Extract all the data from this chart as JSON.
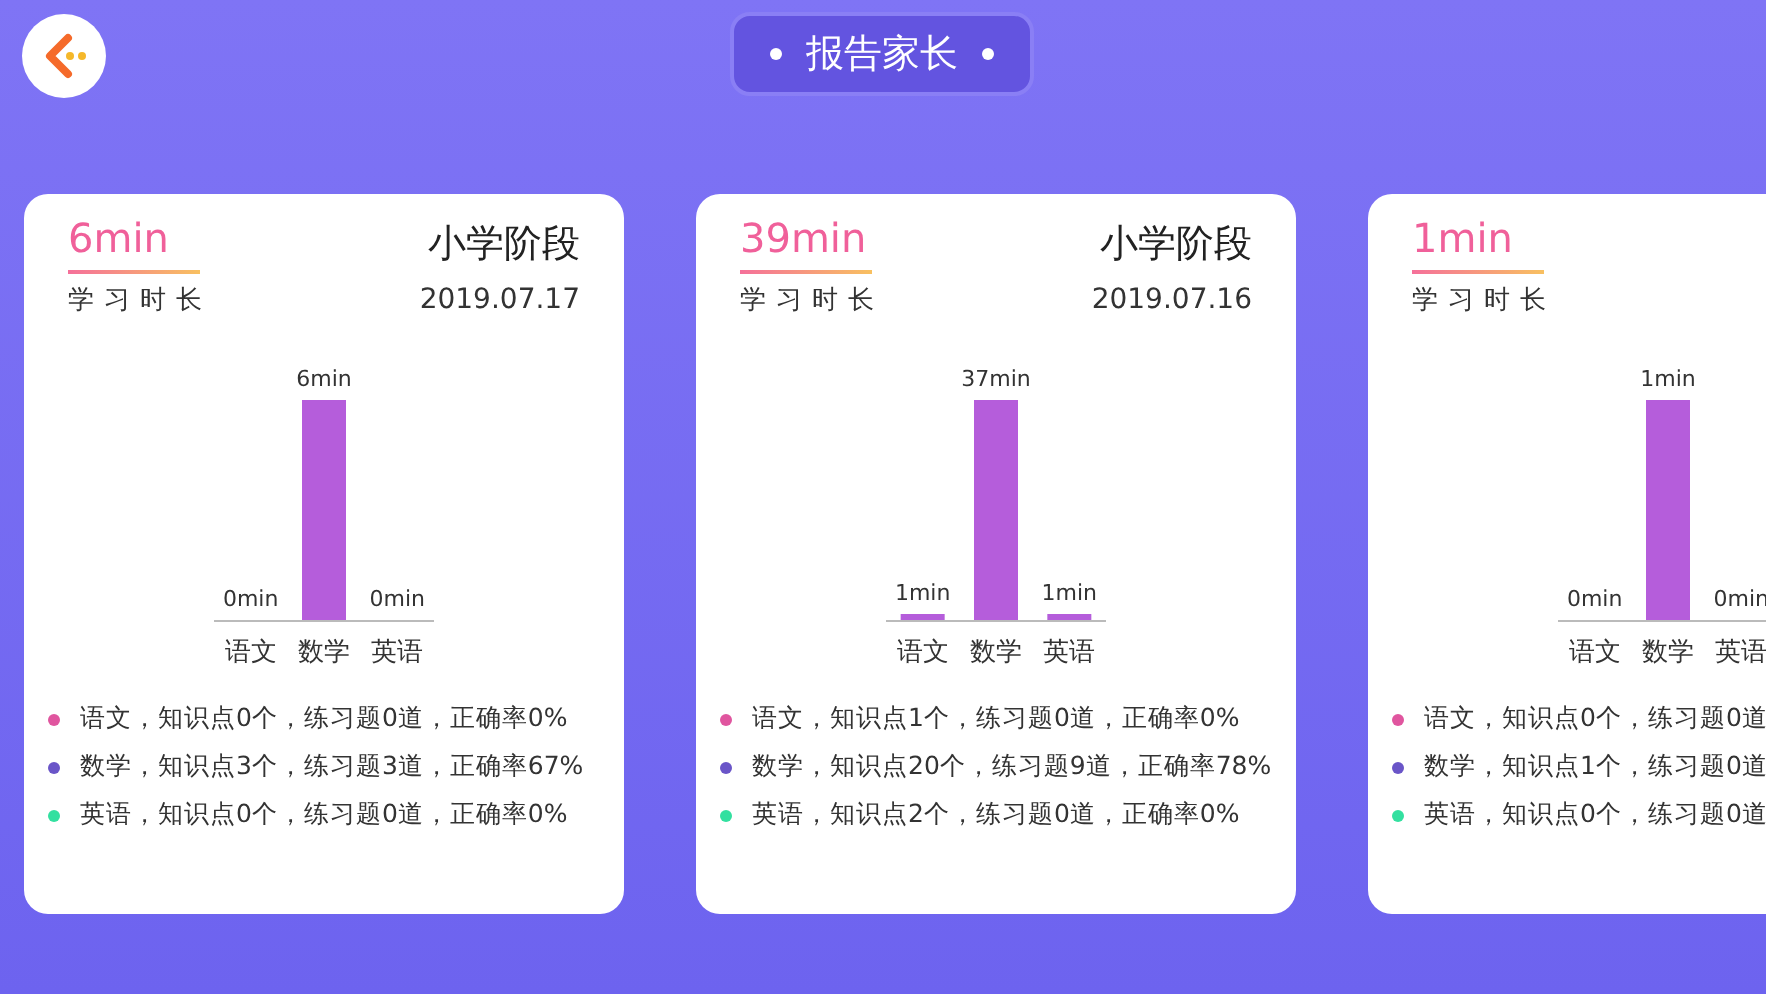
{
  "chart_data": [
    {
      "type": "other",
      "title": "报告家长"
    },
    {
      "type": "bar",
      "title": "小学阶段",
      "subtitle": "2019.07.17",
      "categories": [
        "语文",
        "数学",
        "英语"
      ],
      "values": [
        0,
        6,
        0
      ],
      "value_labels": [
        "0min",
        "6min",
        "0min"
      ],
      "color": "#b55ddb",
      "annotations": [
        "6min",
        "学习时长",
        "语文，知识点0个，练习题0道，正确率0%",
        "数学，知识点3个，练习题3道，正确率67%",
        "英语，知识点0个，练习题0道，正确率0%"
      ]
    },
    {
      "type": "bar",
      "title": "小学阶段",
      "subtitle": "2019.07.16",
      "categories": [
        "语文",
        "数学",
        "英语"
      ],
      "values": [
        1,
        37,
        1
      ],
      "value_labels": [
        "1min",
        "37min",
        "1min"
      ],
      "color": "#b55ddb",
      "annotations": [
        "39min",
        "学习时长",
        "语文，知识点1个，练习题0道，正确率0%",
        "数学，知识点20个，练习题9道，正确率78%",
        "英语，知识点2个，练习题0道，正确率0%"
      ]
    },
    {
      "type": "bar",
      "categories": [
        "语文",
        "数学",
        "英语"
      ],
      "values": [
        0,
        1,
        0
      ],
      "value_labels": [
        "0min",
        "1min",
        "0min"
      ],
      "color": "#b55ddb",
      "annotations": [
        "1min",
        "学习时长",
        "语文，知识点0个，练习题0道",
        "数学，知识点1个，练习题0道",
        "英语，知识点0个，练习题0道"
      ]
    }
  ]
}
